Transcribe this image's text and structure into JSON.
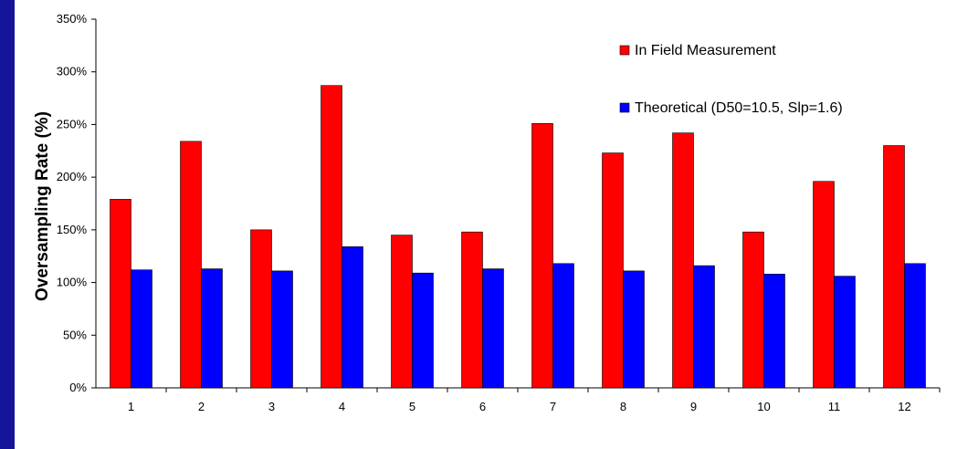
{
  "chart_data": {
    "type": "bar",
    "categories": [
      "1",
      "2",
      "3",
      "4",
      "5",
      "6",
      "7",
      "8",
      "9",
      "10",
      "11",
      "12"
    ],
    "series": [
      {
        "name": "In Field Measurement",
        "color": "#ff0000",
        "values": [
          179,
          234,
          150,
          287,
          145,
          148,
          251,
          223,
          242,
          148,
          196,
          230
        ]
      },
      {
        "name": "Theoretical (D50=10.5, Slp=1.6)",
        "color": "#0000ff",
        "values": [
          112,
          113,
          111,
          134,
          109,
          113,
          118,
          111,
          116,
          108,
          106,
          118
        ]
      }
    ],
    "ylabel": "Oversampling Rate (%)",
    "xlabel": "",
    "ylim": [
      0,
      350
    ],
    "yticks": [
      "0%",
      "50%",
      "100%",
      "150%",
      "200%",
      "250%",
      "300%",
      "350%"
    ],
    "grid": false,
    "legend": "top-right"
  }
}
